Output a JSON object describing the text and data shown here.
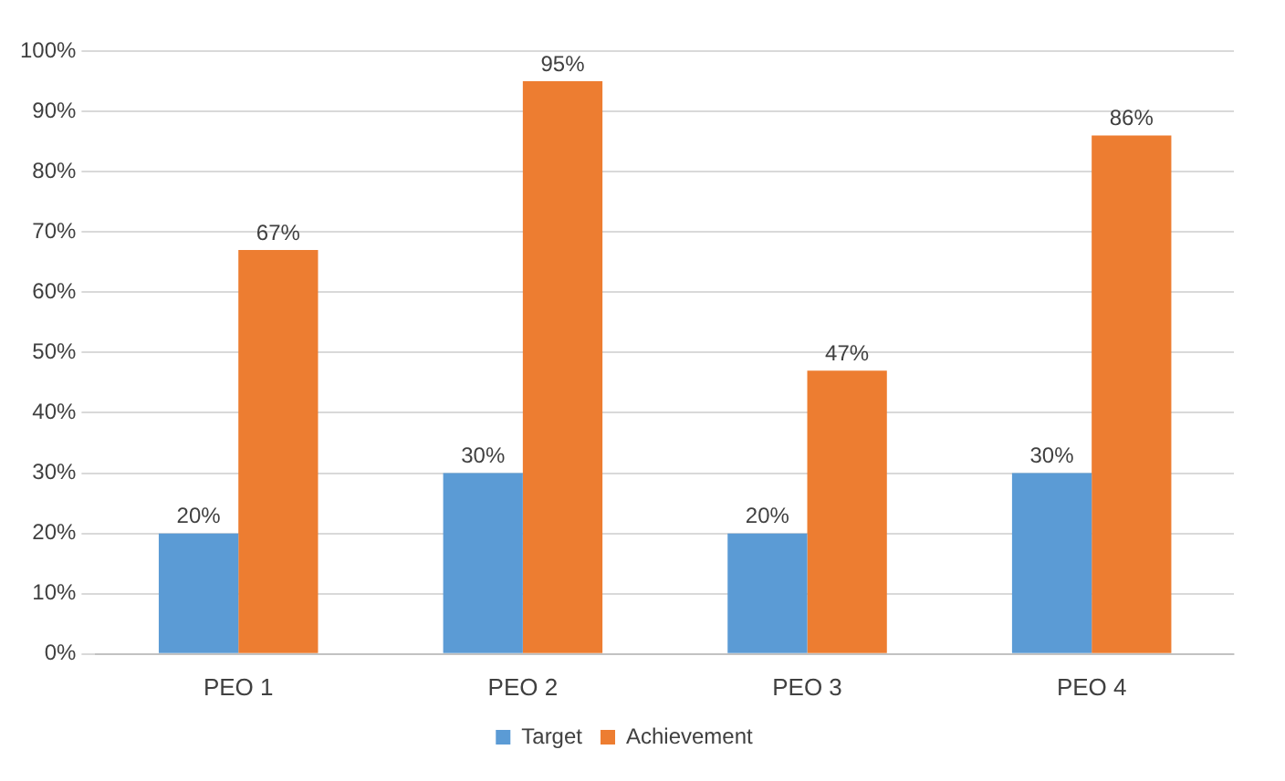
{
  "chart_data": {
    "type": "bar",
    "categories": [
      "PEO 1",
      "PEO 2",
      "PEO 3",
      "PEO 4"
    ],
    "series": [
      {
        "name": "Target",
        "color": "#5b9bd5",
        "values": [
          20,
          30,
          20,
          30
        ],
        "value_labels": [
          "20%",
          "30%",
          "20%",
          "30%"
        ]
      },
      {
        "name": "Achievement",
        "color": "#ed7d31",
        "values": [
          67,
          95,
          47,
          86
        ],
        "value_labels": [
          "67%",
          "95%",
          "47%",
          "86%"
        ]
      }
    ],
    "ylim": [
      0,
      100
    ],
    "yticks": [
      {
        "value": 0,
        "label": "0%"
      },
      {
        "value": 10,
        "label": "10%"
      },
      {
        "value": 20,
        "label": "20%"
      },
      {
        "value": 30,
        "label": "30%"
      },
      {
        "value": 40,
        "label": "40%"
      },
      {
        "value": 50,
        "label": "50%"
      },
      {
        "value": 60,
        "label": "60%"
      },
      {
        "value": 70,
        "label": "70%"
      },
      {
        "value": 80,
        "label": "80%"
      },
      {
        "value": 90,
        "label": "90%"
      },
      {
        "value": 100,
        "label": "100%"
      }
    ],
    "grid": "y",
    "legend": "bottom"
  }
}
